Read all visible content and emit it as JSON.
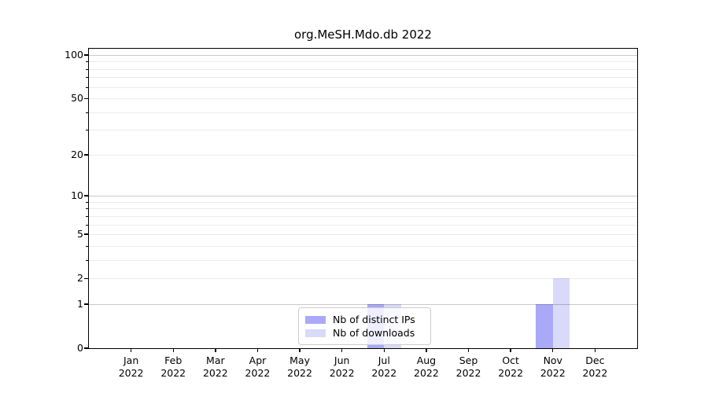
{
  "chart_data": {
    "type": "bar",
    "title": "org.MeSH.Mdo.db 2022",
    "categories": [
      "Jan 2022",
      "Feb 2022",
      "Mar 2022",
      "Apr 2022",
      "May 2022",
      "Jun 2022",
      "Jul 2022",
      "Aug 2022",
      "Sep 2022",
      "Oct 2022",
      "Nov 2022",
      "Dec 2022"
    ],
    "series": [
      {
        "name": "Nb of distinct IPs",
        "color": "#a9a9f7",
        "values": [
          0,
          0,
          0,
          0,
          0,
          0,
          1,
          0,
          0,
          0,
          1,
          0
        ]
      },
      {
        "name": "Nb of downloads",
        "color": "#d9d9f9",
        "values": [
          0,
          0,
          0,
          0,
          0,
          0,
          1,
          0,
          0,
          0,
          2,
          0
        ]
      }
    ],
    "xlabel": "",
    "ylabel": "",
    "yscale": "log1p",
    "ylim": [
      0,
      111
    ],
    "ytick_values": [
      0,
      1,
      2,
      5,
      10,
      20,
      50,
      100
    ],
    "major_grid_values": [
      1,
      10,
      100
    ],
    "labeled_minor_grid_values": [
      2,
      5,
      20,
      50
    ],
    "minor_grid_values": [
      3,
      4,
      6,
      7,
      8,
      9,
      30,
      40,
      60,
      70,
      80,
      90
    ],
    "grid": true,
    "legend_position": "lower center",
    "colors": {
      "axis": "#000000",
      "major_grid": "#c9c9c9",
      "minor_grid": "#ececec",
      "legend_border": "#cccccc",
      "background": "#ffffff"
    }
  }
}
